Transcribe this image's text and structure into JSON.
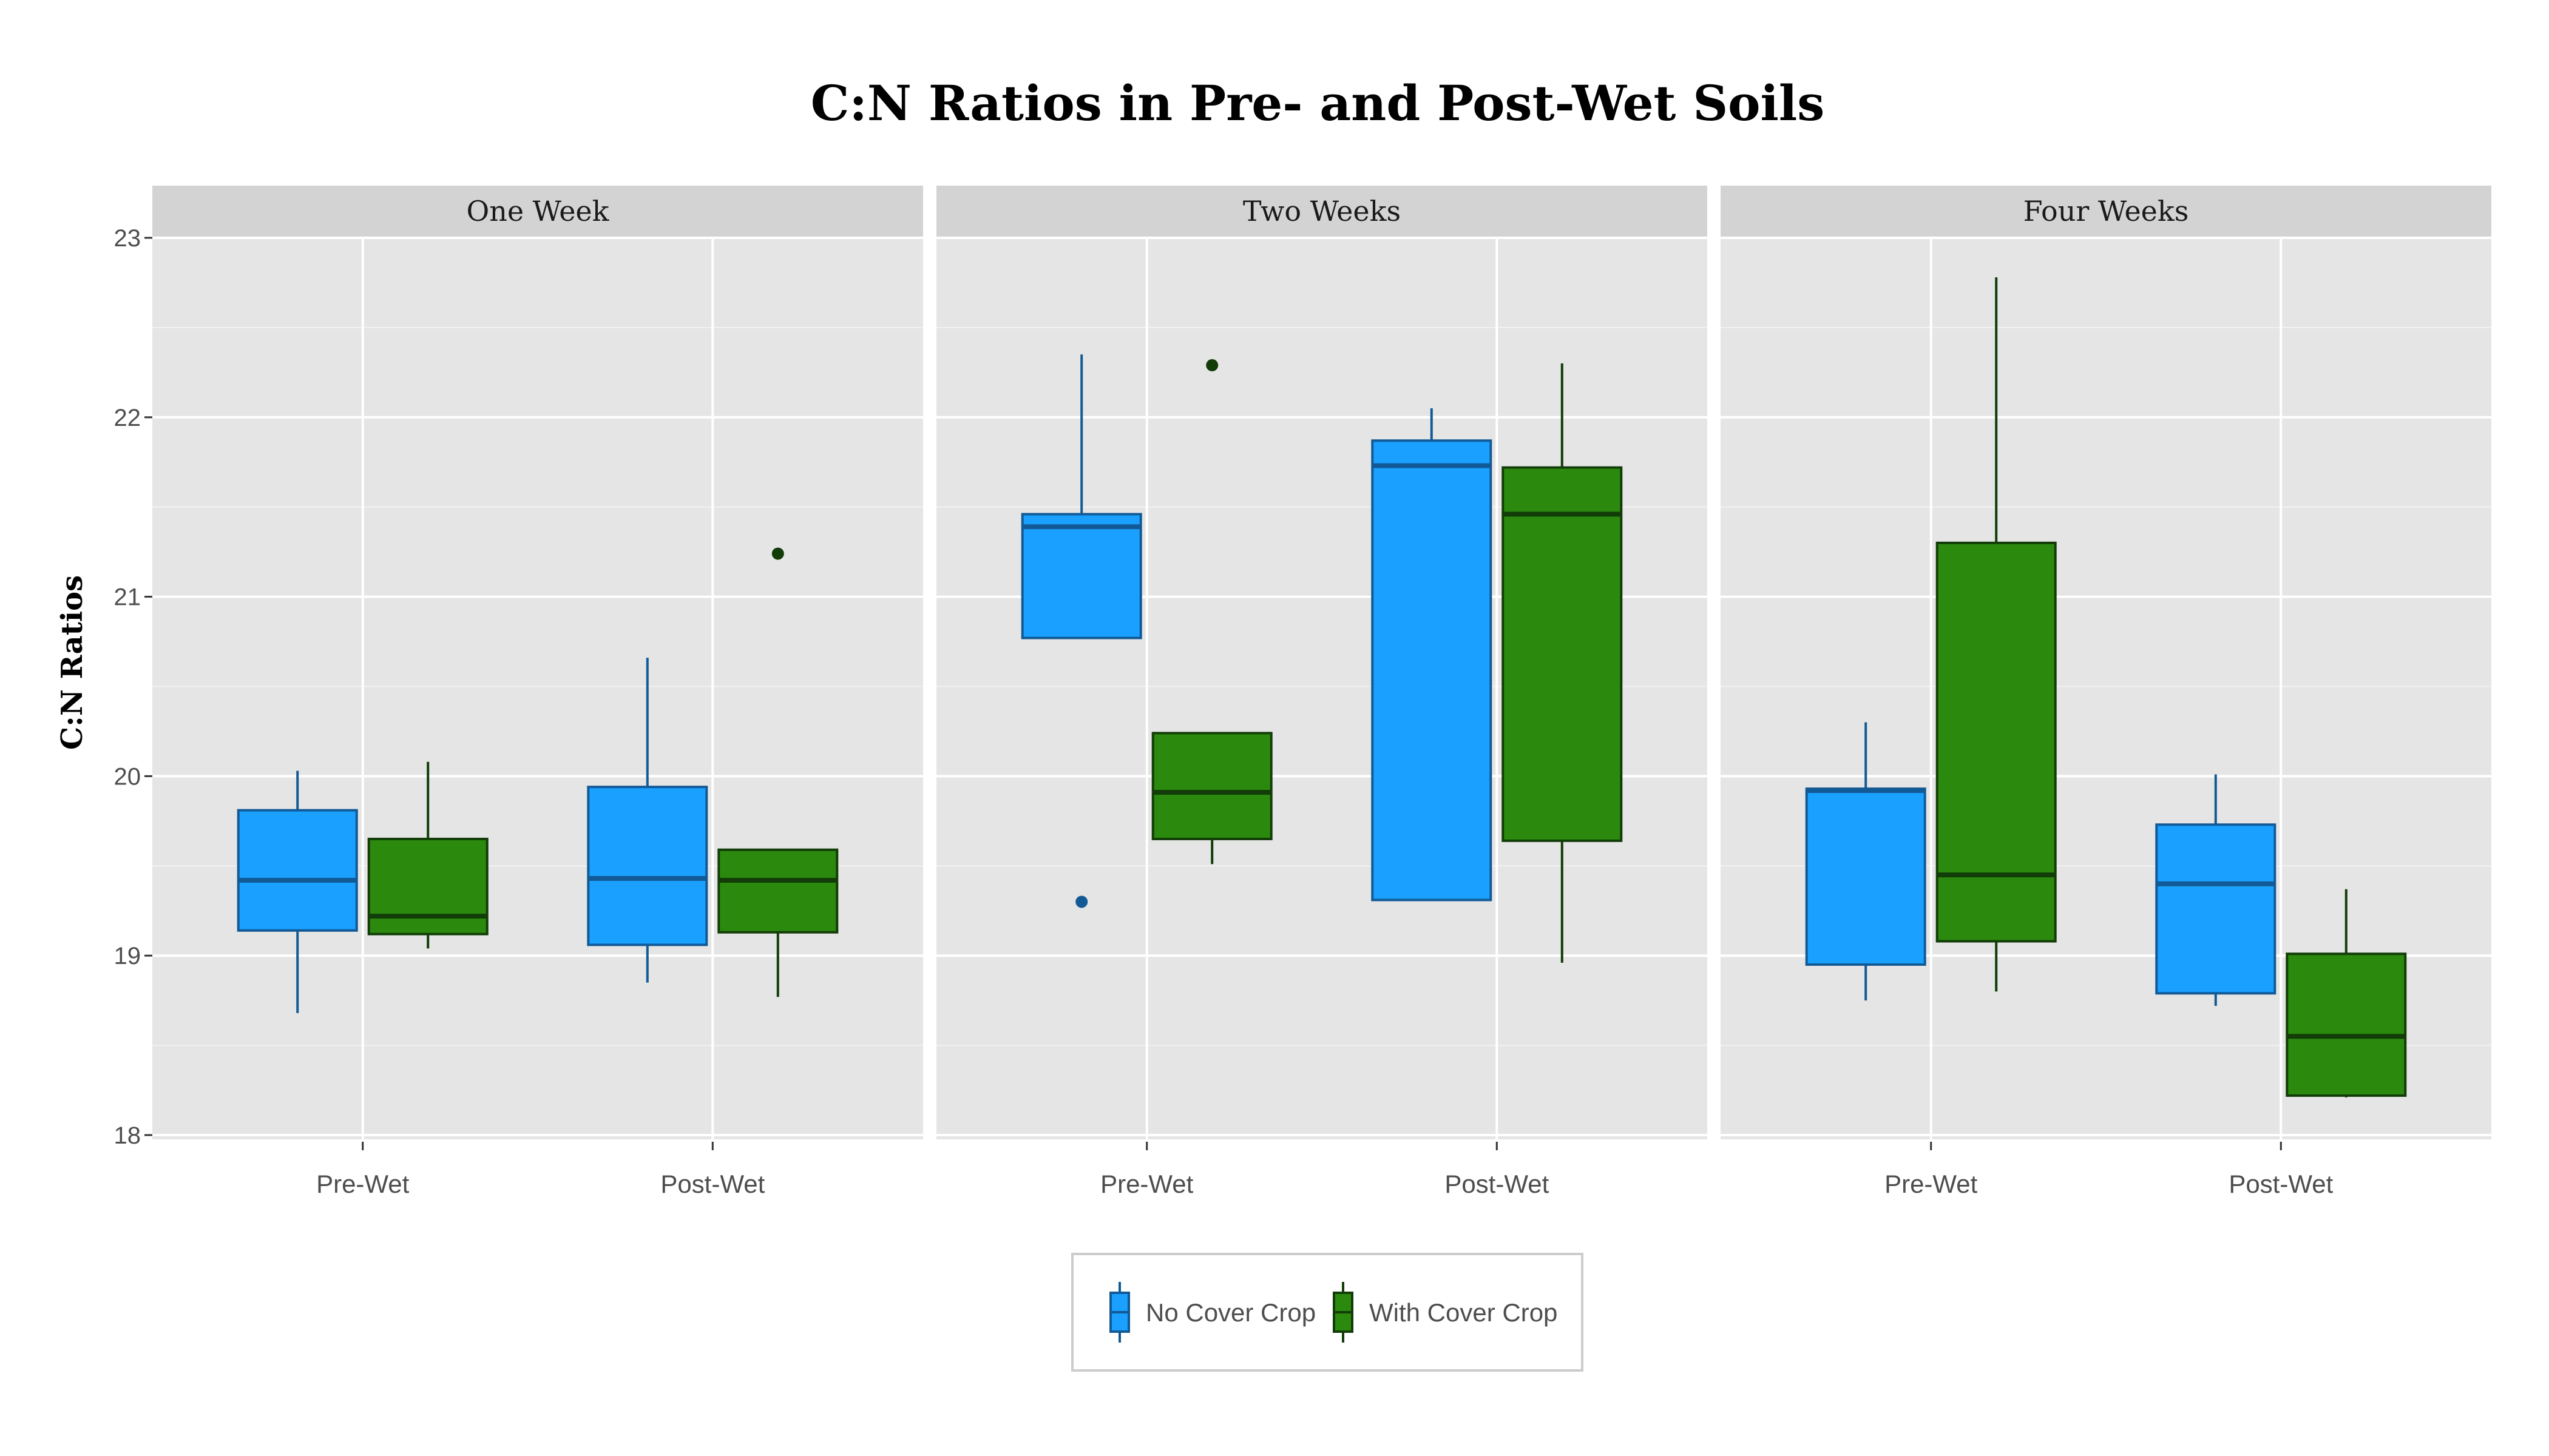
{
  "chart_data": {
    "type": "boxplot",
    "title": "C:N Ratios in Pre- and Post-Wet Soils",
    "ylabel": "C:N Ratios",
    "xlabel": "",
    "ylim": [
      18,
      23
    ],
    "yticks": [
      "18",
      "19",
      "20",
      "21",
      "22",
      "23"
    ],
    "categories": [
      "Pre-Wet",
      "Post-Wet"
    ],
    "panels": [
      {
        "label": "One Week",
        "groups": [
          {
            "category": "Pre-Wet",
            "boxes": [
              {
                "series": "No Cover Crop",
                "whisker_low": 18.68,
                "q1": 19.14,
                "median": 19.42,
                "q3": 19.81,
                "whisker_high": 20.03,
                "outliers": []
              },
              {
                "series": "With Cover Crop",
                "whisker_low": 19.04,
                "q1": 19.12,
                "median": 19.22,
                "q3": 19.65,
                "whisker_high": 20.08,
                "outliers": []
              }
            ]
          },
          {
            "category": "Post-Wet",
            "boxes": [
              {
                "series": "No Cover Crop",
                "whisker_low": 18.85,
                "q1": 19.06,
                "median": 19.43,
                "q3": 19.94,
                "whisker_high": 20.66,
                "outliers": []
              },
              {
                "series": "With Cover Crop",
                "whisker_low": 18.77,
                "q1": 19.13,
                "median": 19.42,
                "q3": 19.59,
                "whisker_high": 19.59,
                "outliers": [
                  21.24
                ]
              }
            ]
          }
        ]
      },
      {
        "label": "Two Weeks",
        "groups": [
          {
            "category": "Pre-Wet",
            "boxes": [
              {
                "series": "No Cover Crop",
                "whisker_low": 20.77,
                "q1": 20.77,
                "median": 21.39,
                "q3": 21.46,
                "whisker_high": 22.35,
                "outliers": [
                  19.3
                ]
              },
              {
                "series": "With Cover Crop",
                "whisker_low": 19.51,
                "q1": 19.65,
                "median": 19.91,
                "q3": 20.24,
                "whisker_high": 20.24,
                "outliers": [
                  22.29
                ]
              }
            ]
          },
          {
            "category": "Post-Wet",
            "boxes": [
              {
                "series": "No Cover Crop",
                "whisker_low": 19.31,
                "q1": 19.31,
                "median": 21.73,
                "q3": 21.87,
                "whisker_high": 22.05,
                "outliers": []
              },
              {
                "series": "With Cover Crop",
                "whisker_low": 18.96,
                "q1": 19.64,
                "median": 21.46,
                "q3": 21.72,
                "whisker_high": 22.3,
                "outliers": []
              }
            ]
          }
        ]
      },
      {
        "label": "Four Weeks",
        "groups": [
          {
            "category": "Pre-Wet",
            "boxes": [
              {
                "series": "No Cover Crop",
                "whisker_low": 18.75,
                "q1": 18.95,
                "median": 19.92,
                "q3": 19.93,
                "whisker_high": 20.3,
                "outliers": []
              },
              {
                "series": "With Cover Crop",
                "whisker_low": 18.8,
                "q1": 19.08,
                "median": 19.45,
                "q3": 21.3,
                "whisker_high": 22.78,
                "outliers": []
              }
            ]
          },
          {
            "category": "Post-Wet",
            "boxes": [
              {
                "series": "No Cover Crop",
                "whisker_low": 18.72,
                "q1": 18.79,
                "median": 19.4,
                "q3": 19.73,
                "whisker_high": 20.01,
                "outliers": []
              },
              {
                "series": "With Cover Crop",
                "whisker_low": 18.21,
                "q1": 18.22,
                "median": 18.55,
                "q3": 19.01,
                "whisker_high": 19.37,
                "outliers": []
              }
            ]
          }
        ]
      }
    ],
    "series": [
      {
        "name": "No Cover Crop",
        "fill": "#1aa0ff",
        "stroke": "#125a96"
      },
      {
        "name": "With Cover Crop",
        "fill": "#2b8a0e",
        "stroke": "#123d08"
      }
    ],
    "grid": true,
    "legend_position": "bottom",
    "panel_background": "#e5e5e5",
    "strip_background": "#d3d3d3"
  }
}
